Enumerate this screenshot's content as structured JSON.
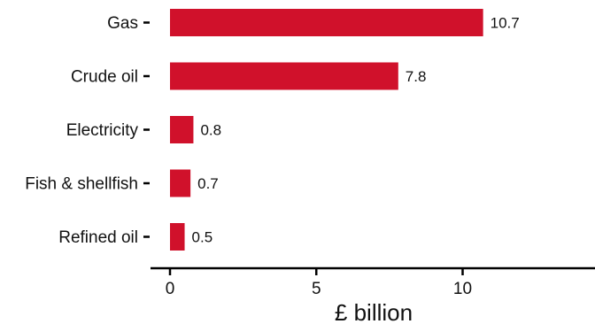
{
  "chart_data": {
    "type": "bar",
    "orientation": "horizontal",
    "categories": [
      "Gas",
      "Crude oil",
      "Electricity",
      "Fish & shellfish",
      "Refined oil"
    ],
    "values": [
      10.7,
      7.8,
      0.8,
      0.7,
      0.5
    ],
    "value_labels": [
      "10.7",
      "7.8",
      "0.8",
      "0.7",
      "0.5"
    ],
    "xlabel": "£ billion",
    "ylabel": "",
    "title": "",
    "xlim": [
      0,
      14.5
    ],
    "xticks": [
      0,
      5,
      10
    ],
    "xtick_labels": [
      "0",
      "5",
      "10"
    ],
    "grid": false,
    "legend": "none",
    "bar_color": "#d0112b",
    "axis_color": "#000000"
  }
}
